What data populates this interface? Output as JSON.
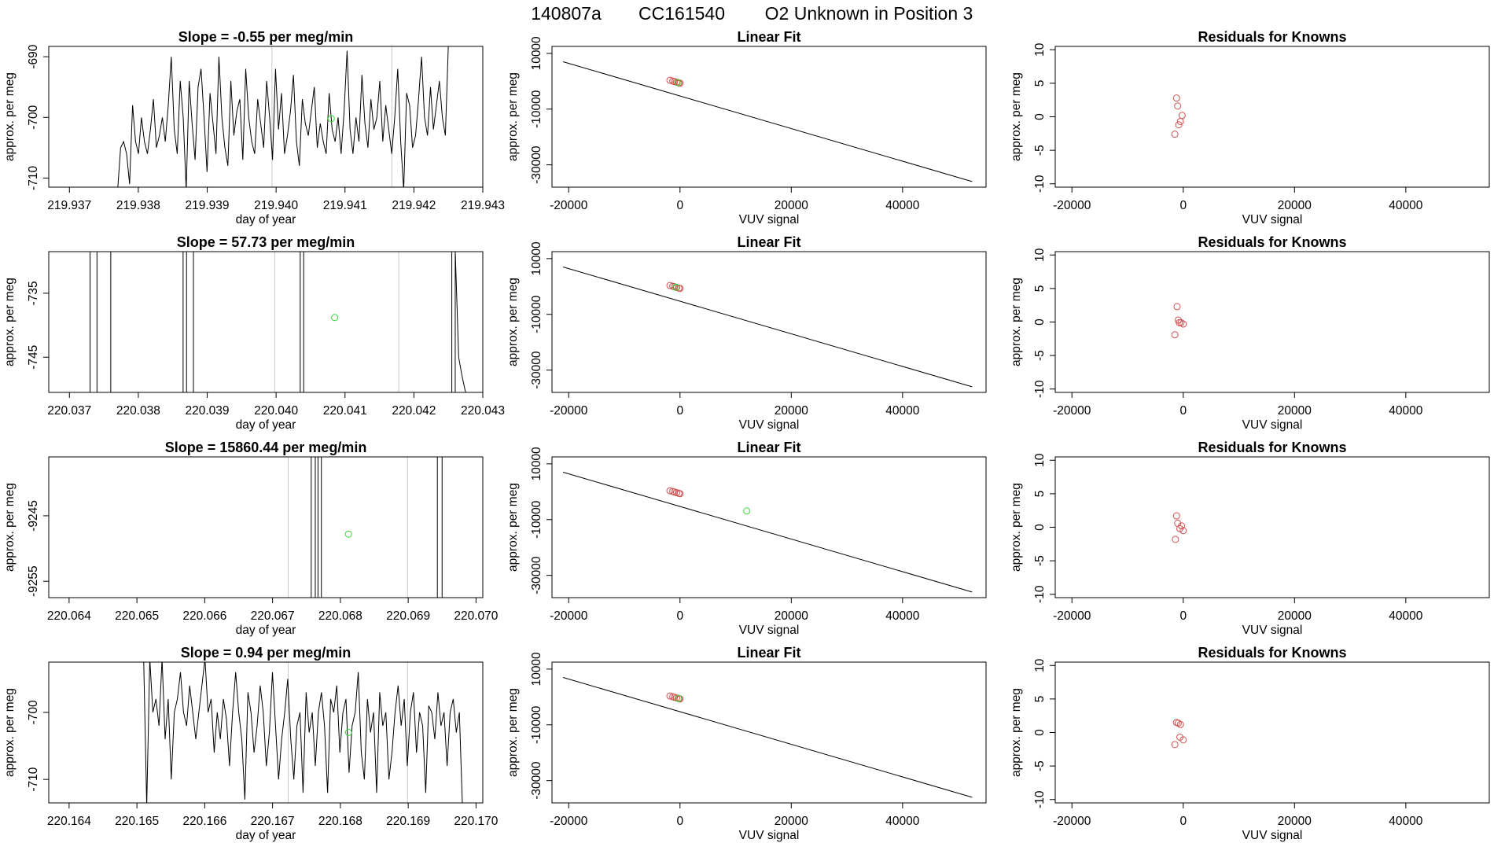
{
  "main_title": {
    "run": "140807a",
    "tank": "CC161540",
    "description": "O2 Unknown in Position  3"
  },
  "colors": {
    "line": "#000000",
    "unknown_point": "#33dd33",
    "known_point": "#d05050",
    "marker_line": "#c8c8c8"
  },
  "chart_data": [
    {
      "row": 1,
      "panel": "time_series",
      "type": "line",
      "title": "Slope =  -0.55  per meg/min",
      "xlabel": "day of year",
      "ylabel": "approx. per meg",
      "xlim": [
        219.9367,
        219.943
      ],
      "ylim": [
        -711.5,
        -688.3
      ],
      "xticks": [
        219.937,
        219.938,
        219.939,
        219.94,
        219.941,
        219.942,
        219.943
      ],
      "xtick_labels": [
        "219.937",
        "219.938",
        "219.939",
        "219.940",
        "219.941",
        "219.942",
        "219.943"
      ],
      "yticks": [
        -690,
        -700,
        -710
      ],
      "ytick_labels": [
        "-690",
        "-700",
        "-710"
      ],
      "x_start": 219.9377,
      "x_end": 219.9425,
      "series": [
        -712,
        -705,
        -704,
        -706,
        -711,
        -698,
        -704,
        -706,
        -700,
        -704,
        -706,
        -702,
        -697,
        -705,
        -703,
        -700,
        -704,
        -698,
        -690,
        -702,
        -706,
        -694,
        -700,
        -712,
        -694,
        -701,
        -707,
        -695,
        -692,
        -700,
        -709,
        -696,
        -701,
        -706,
        -690,
        -700,
        -705,
        -708,
        -694,
        -703,
        -699,
        -697,
        -707,
        -692,
        -700,
        -704,
        -706,
        -697,
        -701,
        -705,
        -694,
        -700,
        -707,
        -692,
        -702,
        -696,
        -706,
        -703,
        -699,
        -693,
        -704,
        -708,
        -697,
        -701,
        -703,
        -699,
        -695,
        -705,
        -701,
        -704,
        -706,
        -696,
        -702,
        -704,
        -700,
        -706,
        -699,
        -689,
        -702,
        -706,
        -700,
        -704,
        -693,
        -701,
        -705,
        -697,
        -702,
        -700,
        -694,
        -704,
        -698,
        -702,
        -706,
        -700,
        -692,
        -704,
        -712,
        -696,
        -698,
        -705,
        -703,
        -697,
        -690,
        -700,
        -703,
        -695,
        -702,
        -698,
        -694,
        -700,
        -703,
        -688
      ],
      "unknown_point": {
        "x": 219.9408,
        "y": -700.2
      },
      "marker_lines": [
        219.93994,
        219.94168
      ]
    },
    {
      "row": 1,
      "panel": "linear_fit",
      "type": "scatter_with_line",
      "title": "Linear Fit",
      "xlabel": "VUV signal",
      "ylabel": "approx. per meg",
      "xlim": [
        -23000,
        55000
      ],
      "ylim": [
        -38000,
        12500
      ],
      "xticks": [
        -20000,
        0,
        20000,
        40000
      ],
      "xtick_labels": [
        "-20000",
        "0",
        "20000",
        "40000"
      ],
      "yticks": [
        10000,
        -10000,
        -30000
      ],
      "ytick_labels": [
        "10000",
        "-10000",
        "-30000"
      ],
      "fit_line": {
        "x": [
          -21000,
          52500
        ],
        "y": [
          7000,
          -36000
        ]
      },
      "known_points": {
        "x": [
          -1800,
          -1300,
          -1000,
          -600,
          -200,
          0
        ],
        "y": [
          350,
          100,
          -100,
          -350,
          -600,
          -700
        ]
      },
      "unknown_points": {
        "x": [
          -400
        ],
        "y": [
          -480
        ]
      }
    },
    {
      "row": 1,
      "panel": "residuals",
      "type": "scatter",
      "title": "Residuals for Knowns",
      "xlabel": "VUV signal",
      "ylabel": "approx. per meg",
      "xlim": [
        -23000,
        55000
      ],
      "ylim": [
        -10.5,
        10.5
      ],
      "xticks": [
        -20000,
        0,
        20000,
        40000
      ],
      "xtick_labels": [
        "-20000",
        "0",
        "20000",
        "40000"
      ],
      "yticks": [
        10,
        5,
        0,
        -5,
        -10
      ],
      "ytick_labels": [
        "10",
        "5",
        "0",
        "-5",
        "-10"
      ],
      "points": {
        "x": [
          -1200,
          -1000,
          -800,
          -500,
          -200,
          -1500
        ],
        "y": [
          2.8,
          1.6,
          -1.2,
          -0.7,
          0.2,
          -2.6
        ]
      }
    },
    {
      "row": 2,
      "panel": "time_series",
      "type": "line",
      "title": "Slope =  57.73  per meg/min",
      "xlabel": "day of year",
      "ylabel": "approx. per meg",
      "xlim": [
        220.0367,
        220.043
      ],
      "ylim": [
        -750.5,
        -728.5
      ],
      "xticks": [
        220.037,
        220.038,
        220.039,
        220.04,
        220.041,
        220.042,
        220.043
      ],
      "xtick_labels": [
        "220.037",
        "220.038",
        "220.039",
        "220.040",
        "220.041",
        "220.042",
        "220.043"
      ],
      "yticks": [
        -735,
        -745
      ],
      "ytick_labels": [
        "-735",
        "-745"
      ],
      "vertical_segments": [
        220.0373,
        220.0374,
        220.0376,
        220.03865,
        220.0387,
        220.0388,
        220.04035,
        220.0404,
        220.04255,
        220.0426
      ],
      "tail": {
        "x": [
          220.0426,
          220.04265,
          220.0427,
          220.04275
        ],
        "y": [
          -728.5,
          -745,
          -748,
          -750.5
        ]
      },
      "unknown_point": {
        "x": 220.04085,
        "y": -738.8
      },
      "marker_lines": [
        220.03998,
        220.04178
      ]
    },
    {
      "row": 2,
      "panel": "linear_fit",
      "type": "scatter_with_line",
      "title": "Linear Fit",
      "xlabel": "VUV signal",
      "ylabel": "approx. per meg",
      "xlim": [
        -23000,
        55000
      ],
      "ylim": [
        -38000,
        12500
      ],
      "xticks": [
        -20000,
        0,
        20000,
        40000
      ],
      "xtick_labels": [
        "-20000",
        "0",
        "20000",
        "40000"
      ],
      "yticks": [
        10000,
        -10000,
        -30000
      ],
      "ytick_labels": [
        "10000",
        "-10000",
        "-30000"
      ],
      "fit_line": {
        "x": [
          -21000,
          52500
        ],
        "y": [
          7000,
          -36000
        ]
      },
      "known_points": {
        "x": [
          -1800,
          -1300,
          -1000,
          -600,
          -200,
          0
        ],
        "y": [
          350,
          100,
          -100,
          -350,
          -600,
          -700
        ]
      },
      "unknown_points": {
        "x": [
          -700
        ],
        "y": [
          -300
        ]
      }
    },
    {
      "row": 2,
      "panel": "residuals",
      "type": "scatter",
      "title": "Residuals for Knowns",
      "xlabel": "VUV signal",
      "ylabel": "approx. per meg",
      "xlim": [
        -23000,
        55000
      ],
      "ylim": [
        -10.5,
        10.5
      ],
      "xticks": [
        -20000,
        0,
        20000,
        40000
      ],
      "xtick_labels": [
        "-20000",
        "0",
        "20000",
        "40000"
      ],
      "yticks": [
        10,
        5,
        0,
        -5,
        -10
      ],
      "ytick_labels": [
        "10",
        "5",
        "0",
        "-5",
        "-10"
      ],
      "points": {
        "x": [
          -1100,
          -900,
          -700,
          -400,
          0,
          -1500
        ],
        "y": [
          2.3,
          0.3,
          -0.1,
          -0.1,
          -0.3,
          -1.9
        ]
      }
    },
    {
      "row": 3,
      "panel": "time_series",
      "type": "line",
      "title": "Slope =  15860.44  per meg/min",
      "xlabel": "day of year",
      "ylabel": "approx. per meg",
      "xlim": [
        220.0637,
        220.0701
      ],
      "ylim": [
        -9257.5,
        -9236
      ],
      "xticks": [
        220.064,
        220.065,
        220.066,
        220.067,
        220.068,
        220.069,
        220.07
      ],
      "xtick_labels": [
        "220.064",
        "220.065",
        "220.066",
        "220.067",
        "220.068",
        "220.069",
        "220.070"
      ],
      "yticks": [
        -9245,
        -9255
      ],
      "ytick_labels": [
        "-9245",
        "-9255"
      ],
      "vertical_segments": [
        220.06757,
        220.06763,
        220.06767,
        220.06772,
        220.06943,
        220.0695
      ],
      "unknown_point": {
        "x": 220.06812,
        "y": -9247.8
      },
      "marker_lines": [
        220.06723,
        220.06899
      ]
    },
    {
      "row": 3,
      "panel": "linear_fit",
      "type": "scatter_with_line",
      "title": "Linear Fit",
      "xlabel": "VUV signal",
      "ylabel": "approx. per meg",
      "xlim": [
        -23000,
        55000
      ],
      "ylim": [
        -38000,
        12500
      ],
      "xticks": [
        -20000,
        0,
        20000,
        40000
      ],
      "xtick_labels": [
        "-20000",
        "0",
        "20000",
        "40000"
      ],
      "yticks": [
        10000,
        -10000,
        -30000
      ],
      "ytick_labels": [
        "10000",
        "-10000",
        "-30000"
      ],
      "fit_line": {
        "x": [
          -21000,
          52500
        ],
        "y": [
          7000,
          -36000
        ]
      },
      "known_points": {
        "x": [
          -1800,
          -1300,
          -1000,
          -600,
          -200,
          0
        ],
        "y": [
          350,
          100,
          -100,
          -350,
          -600,
          -700
        ]
      },
      "unknown_points": {
        "x": [
          12000
        ],
        "y": [
          -6900
        ]
      }
    },
    {
      "row": 3,
      "panel": "residuals",
      "type": "scatter",
      "title": "Residuals for Knowns",
      "xlabel": "VUV signal",
      "ylabel": "approx. per meg",
      "xlim": [
        -23000,
        55000
      ],
      "ylim": [
        -10.5,
        10.5
      ],
      "xticks": [
        -20000,
        0,
        20000,
        40000
      ],
      "xtick_labels": [
        "-20000",
        "0",
        "20000",
        "40000"
      ],
      "yticks": [
        10,
        5,
        0,
        -5,
        -10
      ],
      "ytick_labels": [
        "10",
        "5",
        "0",
        "-5",
        "-10"
      ],
      "points": {
        "x": [
          -1200,
          -1000,
          -600,
          -300,
          0,
          -1400
        ],
        "y": [
          1.7,
          0.6,
          -0.2,
          0.2,
          -0.5,
          -1.8
        ]
      }
    },
    {
      "row": 4,
      "panel": "time_series",
      "type": "line",
      "title": "Slope =  0.94  per meg/min",
      "xlabel": "day of year",
      "ylabel": "approx. per meg",
      "xlim": [
        220.1637,
        220.1701
      ],
      "ylim": [
        -713.5,
        -692.5
      ],
      "xticks": [
        220.164,
        220.165,
        220.166,
        220.167,
        220.168,
        220.169,
        220.17
      ],
      "xtick_labels": [
        "220.164",
        "220.165",
        "220.166",
        "220.167",
        "220.168",
        "220.169",
        "220.170"
      ],
      "yticks": [
        -700,
        -710
      ],
      "ytick_labels": [
        "-700",
        "-710"
      ],
      "x_start": 220.1651,
      "x_end": 220.1698,
      "series": [
        -692,
        -714,
        -692,
        -700,
        -698,
        -702,
        -692,
        -704,
        -698,
        -710,
        -700,
        -698,
        -694,
        -700,
        -702,
        -696,
        -700,
        -704,
        -700,
        -696,
        -692,
        -700,
        -698,
        -706,
        -700,
        -704,
        -698,
        -701,
        -708,
        -700,
        -694,
        -700,
        -704,
        -713,
        -697,
        -700,
        -706,
        -702,
        -696,
        -700,
        -708,
        -703,
        -694,
        -702,
        -710,
        -704,
        -700,
        -695,
        -704,
        -710,
        -702,
        -700,
        -712,
        -697,
        -703,
        -700,
        -708,
        -700,
        -697,
        -702,
        -712,
        -698,
        -700,
        -696,
        -706,
        -700,
        -698,
        -709,
        -702,
        -700,
        -694,
        -706,
        -710,
        -698,
        -703,
        -700,
        -712,
        -697,
        -702,
        -700,
        -710,
        -706,
        -700,
        -696,
        -702,
        -698,
        -708,
        -700,
        -697,
        -706,
        -700,
        -702,
        -712,
        -699,
        -700,
        -704,
        -697,
        -702,
        -700,
        -708,
        -700,
        -698,
        -703,
        -700,
        -714
      ],
      "unknown_point": {
        "x": 220.16812,
        "y": -703
      },
      "marker_lines": [
        220.16723,
        220.16899
      ]
    },
    {
      "row": 4,
      "panel": "linear_fit",
      "type": "scatter_with_line",
      "title": "Linear Fit",
      "xlabel": "VUV signal",
      "ylabel": "approx. per meg",
      "xlim": [
        -23000,
        55000
      ],
      "ylim": [
        -38000,
        12500
      ],
      "xticks": [
        -20000,
        0,
        20000,
        40000
      ],
      "xtick_labels": [
        "-20000",
        "0",
        "20000",
        "40000"
      ],
      "yticks": [
        10000,
        -10000,
        -30000
      ],
      "ytick_labels": [
        "10000",
        "-10000",
        "-30000"
      ],
      "fit_line": {
        "x": [
          -21000,
          52500
        ],
        "y": [
          7000,
          -36000
        ]
      },
      "known_points": {
        "x": [
          -1800,
          -1300,
          -1000,
          -600,
          -200,
          0
        ],
        "y": [
          350,
          100,
          -100,
          -350,
          -600,
          -700
        ]
      },
      "unknown_points": {
        "x": [
          -300
        ],
        "y": [
          -500
        ]
      }
    },
    {
      "row": 4,
      "panel": "residuals",
      "type": "scatter",
      "title": "Residuals for Knowns",
      "xlabel": "VUV signal",
      "ylabel": "approx. per meg",
      "xlim": [
        -23000,
        55000
      ],
      "ylim": [
        -10.5,
        10.5
      ],
      "xticks": [
        -20000,
        0,
        20000,
        40000
      ],
      "xtick_labels": [
        "-20000",
        "0",
        "20000",
        "40000"
      ],
      "yticks": [
        10,
        5,
        0,
        -5,
        -10
      ],
      "ytick_labels": [
        "10",
        "5",
        "0",
        "-5",
        "-10"
      ],
      "points": {
        "x": [
          -1200,
          -900,
          -500,
          -600,
          0,
          -1500
        ],
        "y": [
          1.5,
          1.4,
          1.2,
          -0.7,
          -1.1,
          -1.8
        ]
      }
    }
  ]
}
